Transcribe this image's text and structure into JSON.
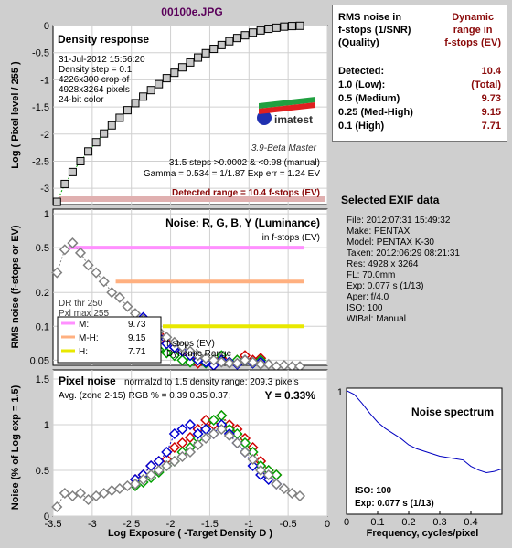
{
  "title": "00100e.JPG",
  "rms_panel": {
    "header_left": [
      "RMS noise in",
      "f-stops (1/SNR)",
      "(Quality)"
    ],
    "header_right": [
      "Dynamic",
      "range in",
      "f-stops (EV)"
    ],
    "rows": [
      {
        "label": "Detected:",
        "value": "10.4"
      },
      {
        "label": "1.0  (Low):",
        "value": "(Total)"
      },
      {
        "label": "0.5  (Medium)",
        "value": "9.73"
      },
      {
        "label": "0.25 (Med-High)",
        "value": "9.15"
      },
      {
        "label": "0.1   (High)",
        "value": "7.71"
      }
    ]
  },
  "exif": {
    "title": "Selected EXIF data",
    "lines": [
      "File:  2012:07:31 15:49:32",
      "Make:  PENTAX",
      "Model: PENTAX K-30",
      "Taken:  2012:06:29 08:21:31",
      "Res:   4928 x 3264",
      "FL:  70.0mm",
      "Exp:  0.077 s  (1/13)",
      "Aper:  f/4.0",
      "ISO:   100",
      "WtBal: Manual"
    ]
  },
  "colors": {
    "panel_bg": "#cfcfcf",
    "plot_bg": "#ffffff",
    "red": "#d00000",
    "green": "#00a000",
    "blue": "#0000d0",
    "luminance": "#808080",
    "range_label": "#8a0a0a",
    "medium_band": "#ff90ff",
    "medhigh_band": "#ffb080",
    "high_band": "#e8e800",
    "spectrum_line": "#0000c0"
  },
  "chart_data": [
    {
      "type": "scatter",
      "title": "Density response",
      "ylabel": "Log ( Pixel level / 255 )",
      "xlim": [
        -3.5,
        0
      ],
      "ylim": [
        -3.3,
        0
      ],
      "xticks": [
        -3,
        -2.5,
        -2,
        -1.5,
        -1,
        -0.5,
        0
      ],
      "yticks": [
        0,
        -0.5,
        -1,
        -1.5,
        -2,
        -2.5,
        -3
      ],
      "ytick_labels": [
        "0",
        "-0.5",
        "-1",
        "-1.5",
        "-2",
        "-2.5",
        "-3"
      ],
      "info_lines": [
        "31-Jul-2012 15:56:20",
        "Density step = 0.1",
        "4226x300 crop of",
        "4928x3264 pixels",
        "24-bit color"
      ],
      "stats_lines": [
        "31.5 steps >0.0002 & <0.98 (manual)",
        "Gamma = 0.534 = 1/1.87  Exp err = 1.24 EV"
      ],
      "range_text": "Detected range = 10.4 f-stops (EV)",
      "logo_text": "imatest",
      "version_text": "3.9-Beta  Master",
      "x": [
        -3.45,
        -3.35,
        -3.25,
        -3.15,
        -3.05,
        -2.95,
        -2.85,
        -2.75,
        -2.65,
        -2.55,
        -2.45,
        -2.35,
        -2.25,
        -2.15,
        -2.05,
        -1.95,
        -1.85,
        -1.75,
        -1.65,
        -1.55,
        -1.45,
        -1.35,
        -1.25,
        -1.15,
        -1.05,
        -0.95,
        -0.85,
        -0.75,
        -0.65,
        -0.55,
        -0.45,
        -0.35
      ],
      "y": [
        -3.25,
        -2.92,
        -2.7,
        -2.5,
        -2.32,
        -2.15,
        -1.99,
        -1.84,
        -1.7,
        -1.56,
        -1.43,
        -1.31,
        -1.19,
        -1.08,
        -0.97,
        -0.87,
        -0.77,
        -0.68,
        -0.59,
        -0.51,
        -0.43,
        -0.36,
        -0.29,
        -0.23,
        -0.18,
        -0.13,
        -0.09,
        -0.06,
        -0.04,
        -0.02,
        -0.01,
        -0.005
      ]
    },
    {
      "type": "line",
      "title": "Noise: R, G, B, Y (Luminance)",
      "subtitle": "in f-stops (EV)",
      "ylabel": "RMS noise (f-stops or EV)",
      "xlim": [
        -3.5,
        0
      ],
      "ylim_log": [
        0.045,
        1.1
      ],
      "yscale": "log",
      "yticks": [
        1,
        0.5,
        0.2,
        0.1,
        0.05
      ],
      "ytick_labels": [
        "1",
        "0.5",
        "0.2",
        "0.1",
        "0.05"
      ],
      "thresholds": [
        {
          "level": 0.5,
          "x_start": -3.3,
          "x_end": -0.3,
          "color": "#ff90ff"
        },
        {
          "level": 0.25,
          "x_start": -2.7,
          "x_end": -0.3,
          "color": "#ffb080"
        },
        {
          "level": 0.1,
          "x_start": -2.1,
          "x_end": -0.3,
          "color": "#e8e800"
        }
      ],
      "dr_lines": [
        "DR thr 250",
        "Pxl max 255"
      ],
      "legend": [
        {
          "label": "M:",
          "value": "9.73",
          "color": "#ff90ff"
        },
        {
          "label": "M-H:",
          "value": "9.15",
          "color": "#ffb080"
        },
        {
          "label": "H:",
          "value": "7.71",
          "color": "#e8e800"
        }
      ],
      "range_note": [
        "f-stops (EV)",
        "Dynamic Range"
      ],
      "x": [
        -3.45,
        -3.35,
        -3.25,
        -3.15,
        -3.05,
        -2.95,
        -2.85,
        -2.75,
        -2.65,
        -2.55,
        -2.45,
        -2.35,
        -2.25,
        -2.15,
        -2.05,
        -1.95,
        -1.85,
        -1.75,
        -1.65,
        -1.55,
        -1.45,
        -1.35,
        -1.25,
        -1.15,
        -1.05,
        -0.95,
        -0.85,
        -0.75,
        -0.65,
        -0.55,
        -0.45,
        -0.35
      ],
      "series": [
        {
          "name": "R",
          "color": "#d00000",
          "values": [
            null,
            null,
            null,
            null,
            null,
            null,
            null,
            null,
            null,
            null,
            null,
            null,
            0.1,
            0.085,
            0.072,
            0.065,
            0.06,
            0.05,
            0.047,
            0.05,
            0.045,
            0.052,
            0.048,
            0.05,
            0.055,
            0.05,
            0.052,
            null,
            null,
            null,
            null,
            null
          ]
        },
        {
          "name": "G",
          "color": "#00a000",
          "values": [
            null,
            null,
            null,
            null,
            null,
            null,
            null,
            null,
            null,
            null,
            null,
            null,
            0.07,
            0.062,
            0.058,
            0.055,
            0.05,
            0.048,
            0.05,
            0.047,
            0.05,
            0.055,
            0.048,
            0.05,
            0.05,
            0.047,
            0.05,
            null,
            null,
            null,
            null,
            null
          ]
        },
        {
          "name": "B",
          "color": "#0000d0",
          "values": [
            null,
            null,
            null,
            null,
            null,
            null,
            null,
            null,
            null,
            null,
            null,
            0.12,
            0.095,
            0.08,
            0.07,
            0.065,
            0.06,
            0.055,
            0.05,
            0.048,
            0.045,
            0.05,
            0.048,
            0.046,
            0.05,
            0.047,
            0.048,
            null,
            null,
            null,
            null,
            null
          ]
        },
        {
          "name": "Y",
          "color": "#808080",
          "values": [
            0.3,
            0.48,
            0.55,
            0.45,
            0.35,
            0.3,
            0.25,
            0.2,
            0.18,
            0.15,
            0.13,
            0.115,
            0.1,
            0.09,
            0.08,
            0.072,
            0.066,
            0.06,
            0.055,
            0.052,
            0.05,
            0.048,
            0.047,
            0.047,
            0.05,
            0.048,
            0.046,
            0.046,
            0.044,
            0.045,
            0.044,
            0.044
          ]
        }
      ]
    },
    {
      "type": "line",
      "title": "Pixel noise",
      "header_note": "normalzd to 1.5 density range: 209.3 pixels",
      "avg_text": "Avg. (zone 2-15) RGB % = 0.39  0.35  0.37;",
      "y_text": "Y = 0.33%",
      "ylabel": "Noise (% of Log exp = 1.5)",
      "xlabel": "Log Exposure ( -Target Density D )",
      "xlim": [
        -3.5,
        0
      ],
      "ylim": [
        0,
        1.6
      ],
      "xticks": [
        -3.5,
        -3,
        -2.5,
        -2,
        -1.5,
        -1,
        -0.5,
        0
      ],
      "xtick_labels": [
        "-3.5",
        "-3",
        "-2.5",
        "-2",
        "-1.5",
        "-1",
        "-0.5",
        "0"
      ],
      "yticks": [
        0,
        0.5,
        1,
        1.5
      ],
      "ytick_labels": [
        "0",
        "0.5",
        "1",
        "1.5"
      ],
      "x": [
        -3.45,
        -3.35,
        -3.25,
        -3.15,
        -3.05,
        -2.95,
        -2.85,
        -2.75,
        -2.65,
        -2.55,
        -2.45,
        -2.35,
        -2.25,
        -2.15,
        -2.05,
        -1.95,
        -1.85,
        -1.75,
        -1.65,
        -1.55,
        -1.45,
        -1.35,
        -1.25,
        -1.15,
        -1.05,
        -0.95,
        -0.85,
        -0.75,
        -0.65,
        -0.55,
        -0.45,
        -0.35
      ],
      "series": [
        {
          "name": "R",
          "color": "#d00000",
          "values": [
            null,
            null,
            null,
            null,
            null,
            null,
            null,
            null,
            null,
            null,
            0.4,
            0.45,
            0.55,
            0.6,
            0.62,
            0.75,
            0.8,
            0.86,
            0.95,
            1.05,
            1.0,
            1.1,
            1.0,
            0.95,
            0.85,
            0.75,
            0.6,
            0.5,
            0.45,
            null,
            null,
            null
          ]
        },
        {
          "name": "G",
          "color": "#00a000",
          "values": [
            null,
            null,
            null,
            null,
            null,
            null,
            null,
            null,
            null,
            null,
            0.33,
            0.37,
            0.42,
            0.48,
            0.55,
            0.6,
            0.7,
            0.75,
            0.85,
            0.95,
            1.05,
            1.1,
            0.95,
            0.9,
            0.8,
            0.7,
            0.55,
            0.5,
            0.45,
            null,
            null,
            null
          ]
        },
        {
          "name": "B",
          "color": "#0000d0",
          "values": [
            null,
            null,
            null,
            null,
            null,
            null,
            null,
            null,
            null,
            null,
            0.4,
            0.45,
            0.55,
            0.6,
            0.7,
            0.9,
            0.95,
            1.0,
            0.9,
            0.95,
            0.9,
            1.0,
            0.9,
            0.8,
            0.7,
            0.55,
            0.45,
            0.4,
            0.35,
            null,
            null,
            null
          ]
        },
        {
          "name": "Y",
          "color": "#808080",
          "values": [
            0.1,
            0.25,
            0.22,
            0.25,
            0.18,
            0.22,
            0.25,
            0.28,
            0.3,
            0.33,
            0.35,
            0.4,
            0.45,
            0.5,
            0.55,
            0.6,
            0.65,
            0.7,
            0.78,
            0.85,
            0.9,
            0.95,
            0.88,
            0.8,
            0.7,
            0.62,
            0.5,
            0.45,
            0.35,
            0.3,
            0.25,
            0.22
          ]
        }
      ]
    },
    {
      "type": "line",
      "title": "Noise spectrum",
      "xlabel": "Frequency, cycles/pixel",
      "xlim": [
        0,
        0.5
      ],
      "ylim": [
        0,
        1
      ],
      "xticks": [
        0,
        0.1,
        0.2,
        0.3,
        0.4
      ],
      "xtick_labels": [
        "0",
        "0.1",
        "0.2",
        "0.3",
        "0.4"
      ],
      "yticks": [
        1
      ],
      "ytick_labels": [
        "1"
      ],
      "iso_text": "ISO:    100",
      "exp_text": "Exp:   0.077 s    (1/13)",
      "x": [
        0,
        0.025,
        0.05,
        0.075,
        0.1,
        0.125,
        0.15,
        0.175,
        0.2,
        0.225,
        0.25,
        0.275,
        0.3,
        0.325,
        0.35,
        0.375,
        0.4,
        0.425,
        0.45,
        0.475,
        0.5
      ],
      "values": [
        0.98,
        0.95,
        0.88,
        0.8,
        0.73,
        0.68,
        0.64,
        0.6,
        0.55,
        0.52,
        0.5,
        0.48,
        0.46,
        0.45,
        0.44,
        0.43,
        0.38,
        0.35,
        0.33,
        0.34,
        0.36
      ]
    }
  ]
}
